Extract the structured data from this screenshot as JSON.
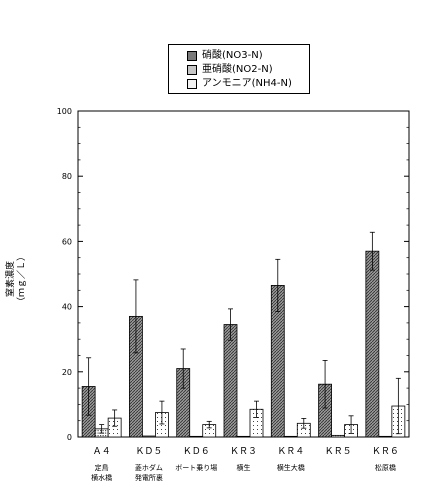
{
  "chart_data": {
    "type": "bar",
    "ylim": [
      0,
      100
    ],
    "yticks": [
      0,
      20,
      40,
      60,
      80,
      100
    ],
    "ylabel": [
      "窒素濃度",
      "（ｍｇ／Ｌ）"
    ],
    "categories": [
      {
        "code": "Ａ４",
        "sub": [
          "定鳥",
          "横水橋"
        ]
      },
      {
        "code": "ＫＤ５",
        "sub": [
          "菱ホダム",
          "発電所裏"
        ]
      },
      {
        "code": "ＫＤ６",
        "sub": [
          "ボート乗り場"
        ]
      },
      {
        "code": "ＫＲ３",
        "sub": [
          "横生"
        ]
      },
      {
        "code": "ＫＲ４",
        "sub": [
          "横生大橋"
        ]
      },
      {
        "code": "ＫＲ５",
        "sub": []
      },
      {
        "code": "ＫＲ６",
        "sub": [
          "松原橋"
        ]
      }
    ],
    "series": [
      {
        "name": "硝酸(NO3-N)",
        "pattern": "hatch-dense",
        "values": [
          15.5,
          37,
          21,
          34.5,
          46.5,
          16.2,
          57
        ],
        "errors": [
          8.8,
          11.2,
          6,
          4.8,
          8,
          7.3,
          5.8
        ]
      },
      {
        "name": "亜硝酸(NO2-N)",
        "pattern": "dots-dense",
        "values": [
          2.5,
          0.3,
          0.2,
          0.2,
          0.2,
          0.5,
          0.2
        ],
        "errors": [
          1.3,
          0,
          0,
          0,
          0,
          0,
          0
        ]
      },
      {
        "name": "アンモニア(NH4-N)",
        "pattern": "dots-sparse",
        "values": [
          5.8,
          7.5,
          3.8,
          8.5,
          4.2,
          3.8,
          9.5
        ],
        "errors": [
          2.5,
          3.5,
          1,
          2.5,
          1.5,
          2.7,
          8.5
        ]
      }
    ],
    "grid": false,
    "legend_position": "top"
  }
}
